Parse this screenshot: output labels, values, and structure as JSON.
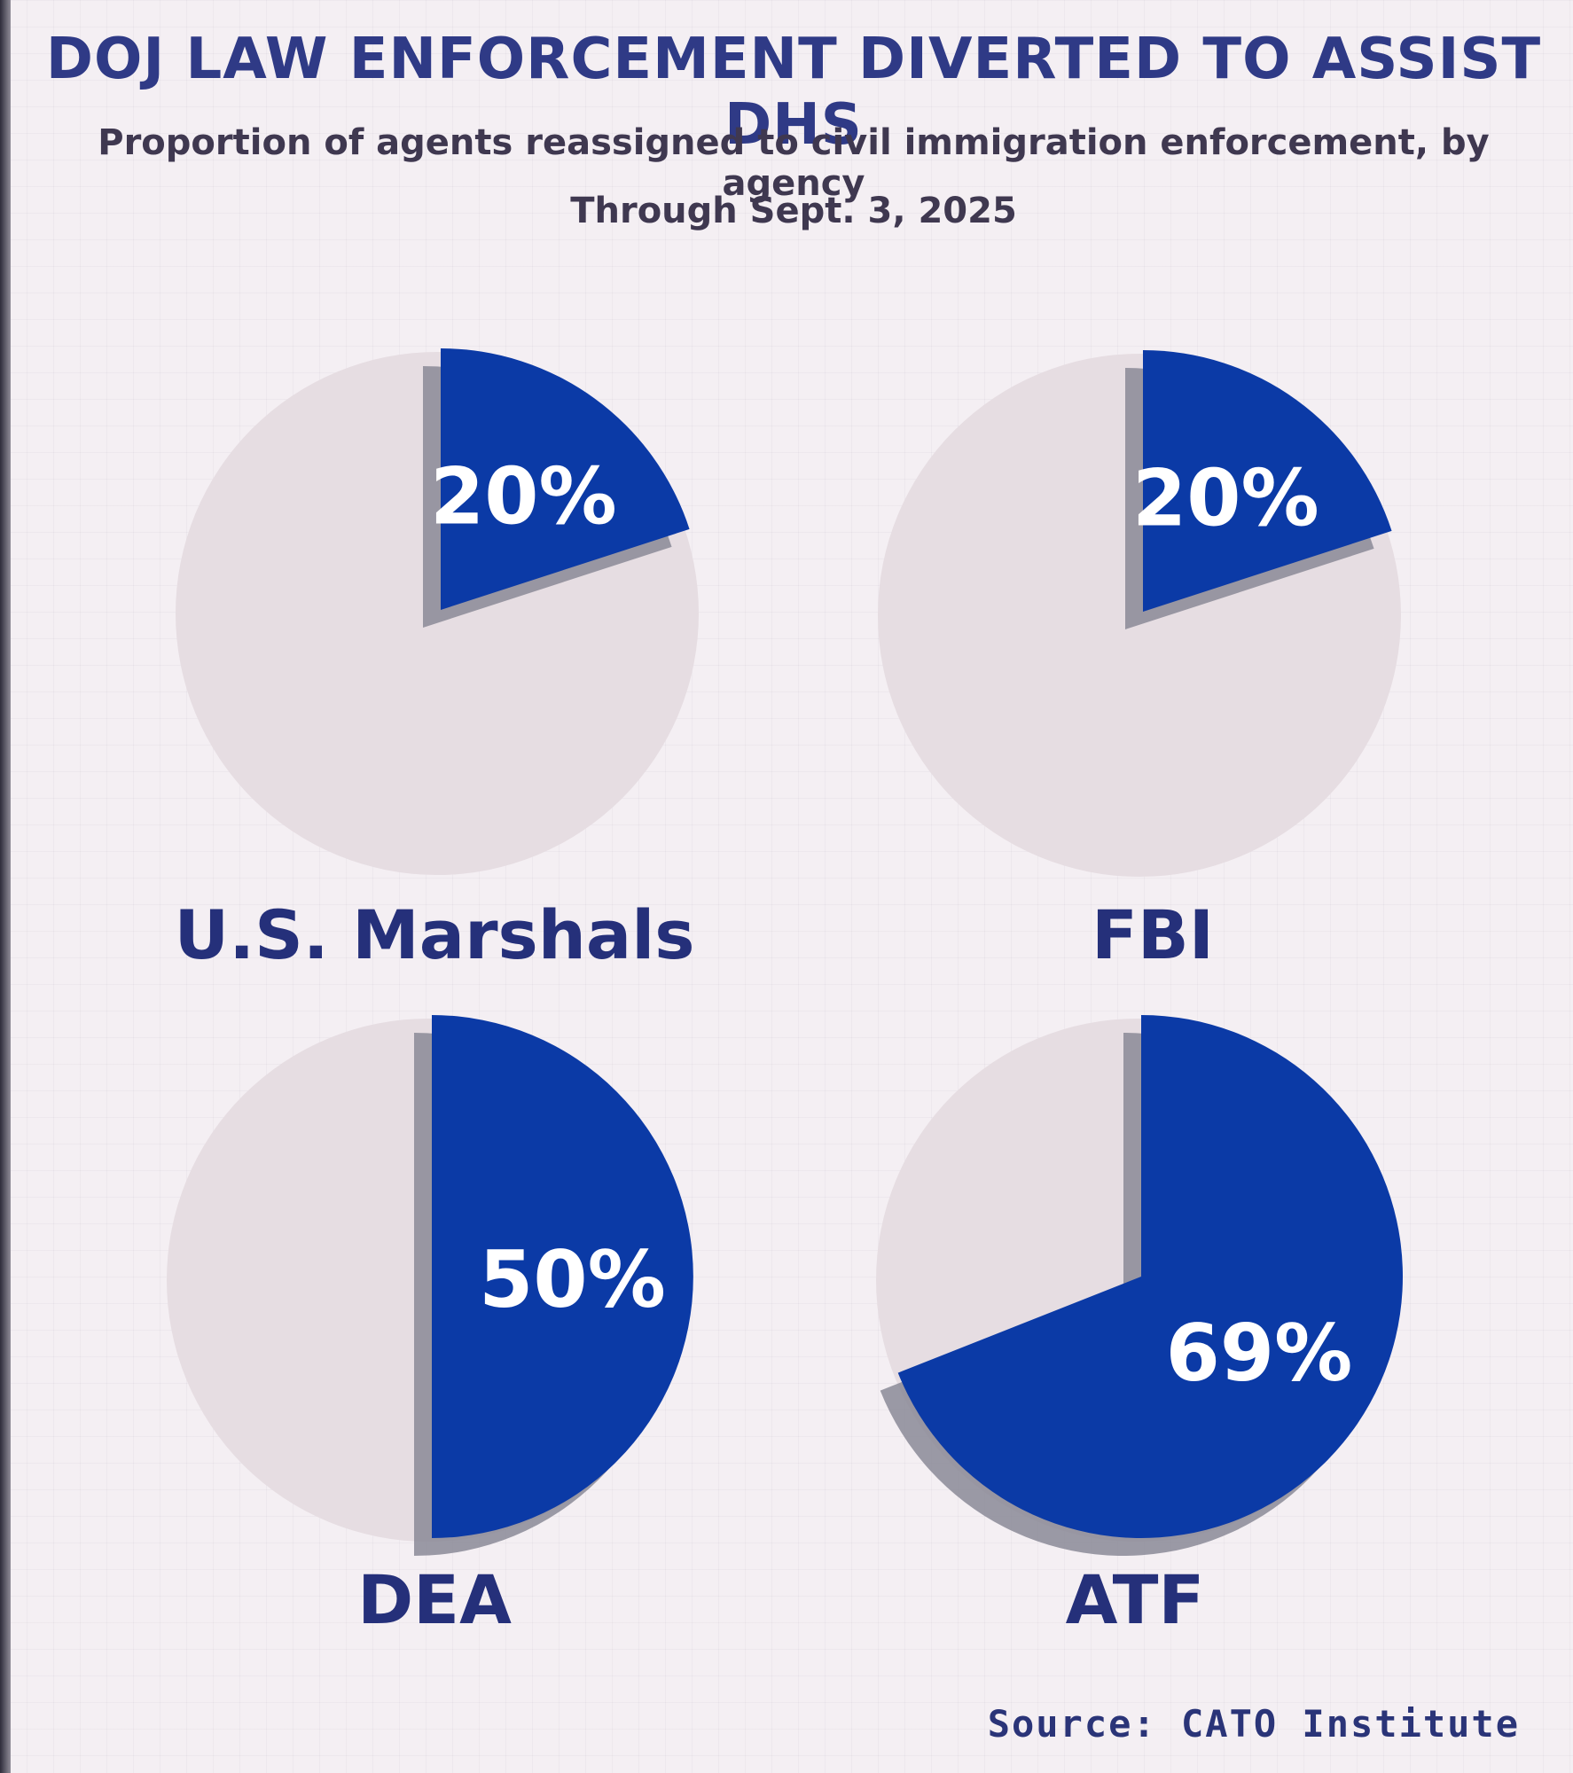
{
  "chart_data": {
    "type": "pie",
    "title": "DOJ LAW ENFORCEMENT DIVERTED TO ASSIST DHS",
    "subtitle": "Proportion of agents reassigned to civil immigration enforcement, by agency",
    "date_note": "Through Sept. 3, 2025",
    "source": "Source: CATO Institute",
    "colors": {
      "highlight": "#0b3aa6",
      "remainder": "#e6dde2",
      "shadow": "#8a8a96"
    },
    "pies": [
      {
        "name": "U.S. Marshals",
        "value": 20,
        "label": "20%"
      },
      {
        "name": "FBI",
        "value": 20,
        "label": "20%"
      },
      {
        "name": "DEA",
        "value": 50,
        "label": "50%"
      },
      {
        "name": "ATF",
        "value": 69,
        "label": "69%"
      }
    ]
  }
}
